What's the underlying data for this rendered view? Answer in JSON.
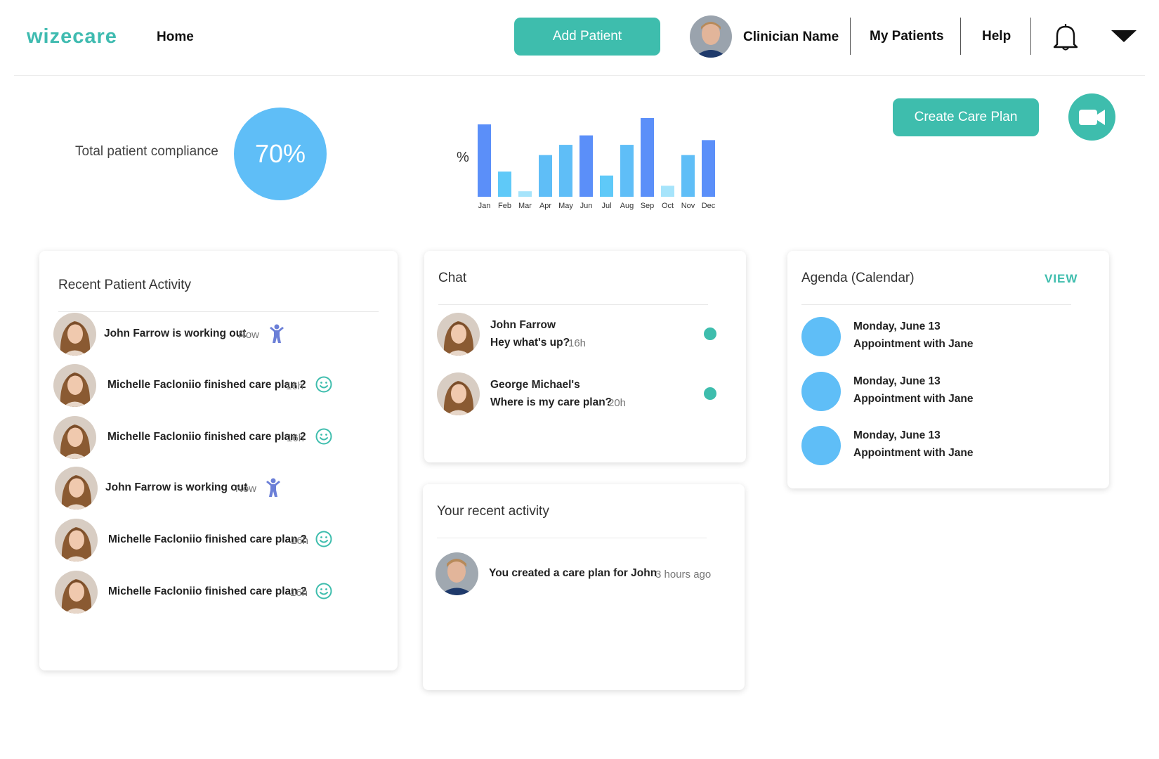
{
  "header": {
    "logo": "wizecare",
    "home": "Home",
    "add_patient": "Add Patient",
    "clinician_name": "Clinician Name",
    "my_patients": "My Patients",
    "help": "Help"
  },
  "stats": {
    "compliance_label": "Total patient compliance",
    "compliance_value": "70%"
  },
  "actions": {
    "create_care_plan": "Create Care Plan"
  },
  "chart_data": {
    "type": "bar",
    "ylabel": "%",
    "categories": [
      "Jan",
      "Feb",
      "Mar",
      "Apr",
      "May",
      "Jun",
      "Jul",
      "Aug",
      "Sep",
      "Oct",
      "Nov",
      "Dec"
    ],
    "values": [
      92,
      32,
      7,
      53,
      66,
      78,
      27,
      66,
      100,
      14,
      53,
      72
    ],
    "colors": [
      "#5b8ff9",
      "#5fc9f8",
      "#a6e4fb",
      "#5fbef7",
      "#5fbef7",
      "#5b8ff9",
      "#5fc9f8",
      "#5fbef7",
      "#5b8ff9",
      "#a6e4fb",
      "#5fbef7",
      "#5b8ff9"
    ],
    "ylim": [
      0,
      100
    ],
    "grid": false
  },
  "recent_activity": {
    "title": "Recent Patient Activity",
    "items": [
      {
        "text": "John Farrow is working out",
        "time": "Now",
        "icon": "person-exercise-icon"
      },
      {
        "text": "Michelle Facloniio finished care plan 2",
        "time": "16h",
        "icon": "smiley-icon"
      },
      {
        "text": "Michelle Facloniio finished care plan 2",
        "time": "16h",
        "icon": "smiley-icon"
      },
      {
        "text": "John Farrow is working out",
        "time": "Now",
        "icon": "person-exercise-icon"
      },
      {
        "text": "Michelle Facloniio finished care plan 2",
        "time": "16h",
        "icon": "smiley-icon"
      },
      {
        "text": "Michelle Facloniio finished care plan 2",
        "time": "16h",
        "icon": "smiley-icon"
      }
    ]
  },
  "chat": {
    "title": "Chat",
    "items": [
      {
        "name": "John Farrow",
        "message": "Hey what's up?",
        "time": "16h"
      },
      {
        "name": "George Michael's",
        "message": "Where is my care plan?",
        "time": "20h"
      }
    ]
  },
  "your_activity": {
    "title": "Your recent activity",
    "items": [
      {
        "text": "You created a care plan for John",
        "time": "3 hours ago"
      }
    ]
  },
  "agenda": {
    "title": "Agenda (Calendar)",
    "view": "VIEW",
    "items": [
      {
        "date": "Monday, June 13",
        "desc": "Appointment with Jane"
      },
      {
        "date": "Monday, June 13",
        "desc": "Appointment with Jane"
      },
      {
        "date": "Monday, June 13",
        "desc": "Appointment with Jane"
      }
    ]
  },
  "colors": {
    "teal": "#3ebdad",
    "blue": "#5fbef7",
    "icon_purple": "#6b7fd7"
  }
}
